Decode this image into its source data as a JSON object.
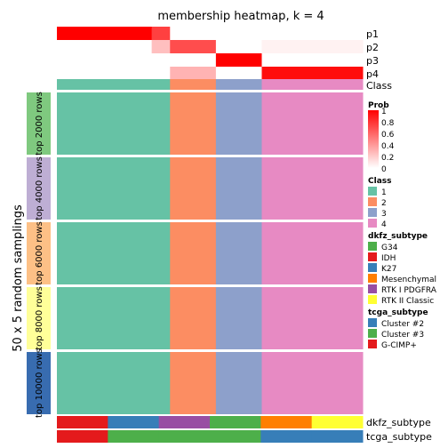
{
  "colors": {
    "class_1": "#66C2A5",
    "class_2": "#FC8D62",
    "class_3": "#8DA0CB",
    "class_4": "#E78AC3",
    "prob_high": "#FF0000",
    "prob_low": "#FFFFFF"
  },
  "chart_data": {
    "type": "heatmap",
    "title": "membership heatmap, k = 4",
    "ylabel": "50 x 5 random samplings",
    "prob_rows": [
      "p1",
      "p2",
      "p3",
      "p4"
    ],
    "class_row_label": "Class",
    "column_groups": [
      {
        "class": "1",
        "width": 0.31,
        "probs": [
          1.0,
          0.0,
          0.0,
          0.0
        ]
      },
      {
        "class": "1",
        "width": 0.06,
        "probs": [
          0.75,
          0.25,
          0.0,
          0.0
        ]
      },
      {
        "class": "2",
        "width": 0.15,
        "probs": [
          0.0,
          0.7,
          0.0,
          0.3
        ]
      },
      {
        "class": "3",
        "width": 0.15,
        "probs": [
          0.0,
          0.0,
          1.0,
          0.0
        ]
      },
      {
        "class": "4",
        "width": 0.33,
        "probs": [
          0.0,
          0.05,
          0.0,
          0.95
        ]
      }
    ],
    "row_groups": [
      {
        "label": "top 2000 rows",
        "color": "#7FC97F"
      },
      {
        "label": "top 4000 rows",
        "color": "#BEAED4"
      },
      {
        "label": "top 6000 rows",
        "color": "#FDC086"
      },
      {
        "label": "top 8000 rows",
        "color": "#FFFF99"
      },
      {
        "label": "top 10000 rows",
        "color": "#386CB0"
      }
    ],
    "legend_prob": {
      "title": "Prob",
      "ticks": [
        "1",
        "0.8",
        "0.6",
        "0.4",
        "0.2",
        "0"
      ]
    },
    "legend_class": {
      "title": "Class",
      "items": [
        "1",
        "2",
        "3",
        "4"
      ]
    },
    "legend_dkfz": {
      "title": "dkfz_subtype",
      "items": [
        {
          "label": "G34",
          "color": "#4DAF4A"
        },
        {
          "label": "IDH",
          "color": "#E41A1C"
        },
        {
          "label": "K27",
          "color": "#377EB8"
        },
        {
          "label": "Mesenchymal",
          "color": "#FF7F00"
        },
        {
          "label": "RTK I PDGFRA",
          "color": "#984EA3"
        },
        {
          "label": "RTK II Classic",
          "color": "#FFFF33"
        }
      ]
    },
    "legend_tcga": {
      "title": "tcga_subtype",
      "items": [
        {
          "label": "Cluster #2",
          "color": "#377EB8"
        },
        {
          "label": "Cluster #3",
          "color": "#4DAF4A"
        },
        {
          "label": "G-CIMP+",
          "color": "#E41A1C"
        }
      ]
    },
    "bottom_annotations": [
      "dkfz_subtype",
      "tcga_subtype"
    ]
  }
}
